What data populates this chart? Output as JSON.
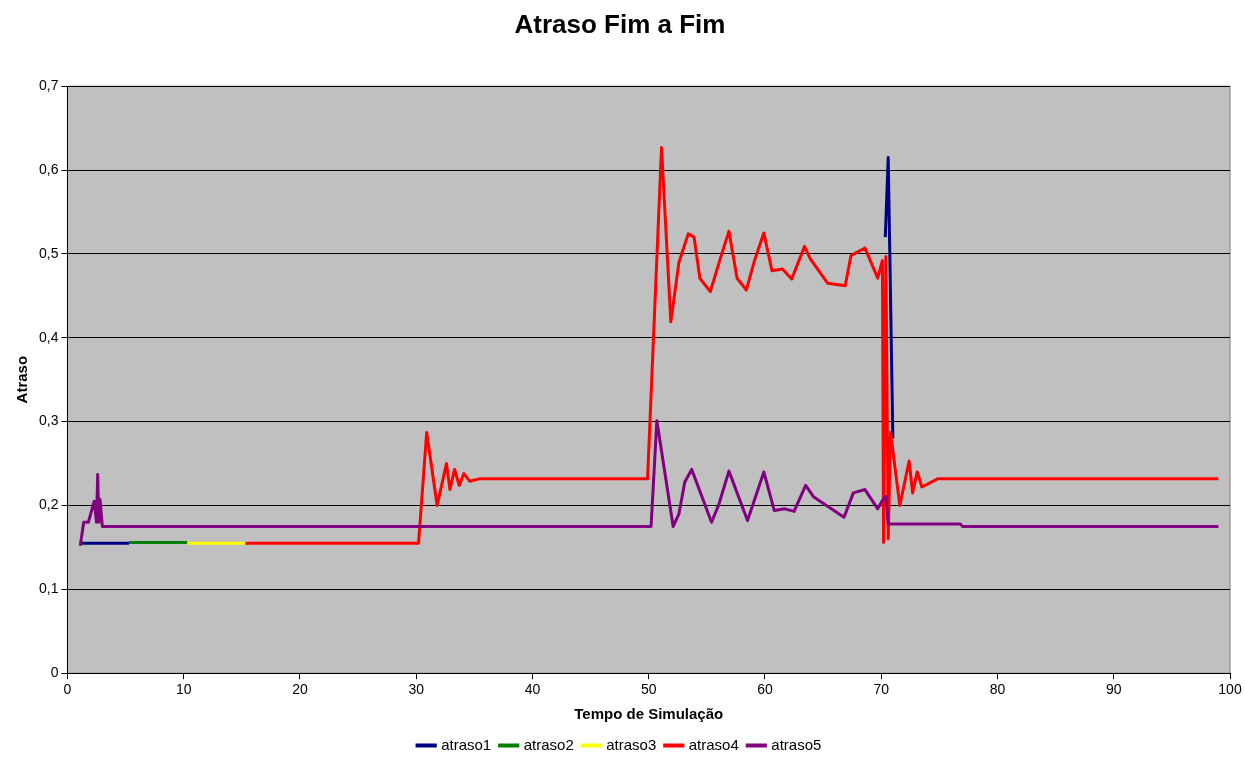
{
  "chart_data": {
    "type": "line",
    "title": "Atraso Fim a Fim",
    "xlabel": "Tempo de Simulação",
    "ylabel": "Atraso",
    "xlim": [
      0,
      100
    ],
    "xticks": [
      0,
      10,
      20,
      30,
      40,
      50,
      60,
      70,
      80,
      90,
      100
    ],
    "ylim": [
      0,
      0.7
    ],
    "yticks": [
      {
        "value": 0,
        "label": "0"
      },
      {
        "value": 0.1,
        "label": "0,1"
      },
      {
        "value": 0.2,
        "label": "0,2"
      },
      {
        "value": 0.3,
        "label": "0,3"
      },
      {
        "value": 0.4,
        "label": "0,4"
      },
      {
        "value": 0.5,
        "label": "0,5"
      },
      {
        "value": 0.6,
        "label": "0,6"
      },
      {
        "value": 0.7,
        "label": "0,7"
      }
    ],
    "grid": "y",
    "legend": "bottom",
    "marker": "none",
    "line_style": "solid",
    "series": [
      {
        "name": "atraso1",
        "color": "#000080",
        "x": [
          1.1,
          5.3,
          30.0,
          70.35,
          70.6,
          71.0
        ],
        "values": [
          0.155,
          0.155,
          null,
          0.52,
          0.615,
          0.28
        ]
      },
      {
        "name": "atraso2",
        "color": "#008000",
        "x": [
          5.3,
          10.3
        ],
        "values": [
          0.156,
          0.156
        ]
      },
      {
        "name": "atraso3",
        "color": "#ffff00",
        "x": [
          10.3,
          15.3
        ],
        "values": [
          0.155,
          0.155
        ]
      },
      {
        "name": "atraso4",
        "color": "#ff0000",
        "x": [
          15.3,
          30.2,
          30.9,
          31.8,
          32.6,
          32.9,
          33.3,
          33.7,
          34.1,
          34.6,
          35.5,
          49.9,
          51.1,
          51.9,
          52.6,
          53.4,
          53.9,
          54.4,
          55.3,
          56.1,
          56.9,
          57.6,
          58.4,
          59.1,
          59.9,
          60.6,
          61.5,
          62.3,
          63.4,
          63.9,
          65.4,
          66.9,
          67.4,
          68.6,
          69.7,
          70.1,
          70.2,
          70.4,
          70.6,
          70.8,
          71.6,
          72.4,
          72.7,
          73.1,
          73.5,
          74.9,
          99
        ],
        "values": [
          0.155,
          0.155,
          0.287,
          0.2,
          0.25,
          0.219,
          0.243,
          0.224,
          0.238,
          0.229,
          0.232,
          0.232,
          0.627,
          0.419,
          0.49,
          0.524,
          0.52,
          0.471,
          0.455,
          0.492,
          0.527,
          0.471,
          0.457,
          0.492,
          0.525,
          0.48,
          0.482,
          0.47,
          0.509,
          0.494,
          0.465,
          0.462,
          0.498,
          0.507,
          0.471,
          0.492,
          0.156,
          0.497,
          0.16,
          0.287,
          0.2,
          0.253,
          0.215,
          0.24,
          0.222,
          0.232,
          0.232
        ]
      },
      {
        "name": "atraso5",
        "color": "#800080",
        "x": [
          1.1,
          1.4,
          1.8,
          2.0,
          2.3,
          2.5,
          2.6,
          2.7,
          2.8,
          3.0,
          50.2,
          50.7,
          52.1,
          52.6,
          53.1,
          53.7,
          55.4,
          56.0,
          56.9,
          58.5,
          59.9,
          60.8,
          61.7,
          62.5,
          63.5,
          64.2,
          66.8,
          67.6,
          68.6,
          69.7,
          70.1,
          70.4,
          70.6,
          76.8,
          77.0,
          99
        ],
        "values": [
          0.152,
          0.18,
          0.18,
          0.19,
          0.205,
          0.18,
          0.237,
          0.18,
          0.207,
          0.175,
          0.175,
          0.301,
          0.175,
          0.19,
          0.228,
          0.243,
          0.18,
          0.2,
          0.241,
          0.182,
          0.24,
          0.194,
          0.196,
          0.193,
          0.224,
          0.21,
          0.186,
          0.215,
          0.219,
          0.196,
          0.206,
          0.211,
          0.178,
          0.178,
          0.175,
          0.175
        ]
      }
    ]
  }
}
